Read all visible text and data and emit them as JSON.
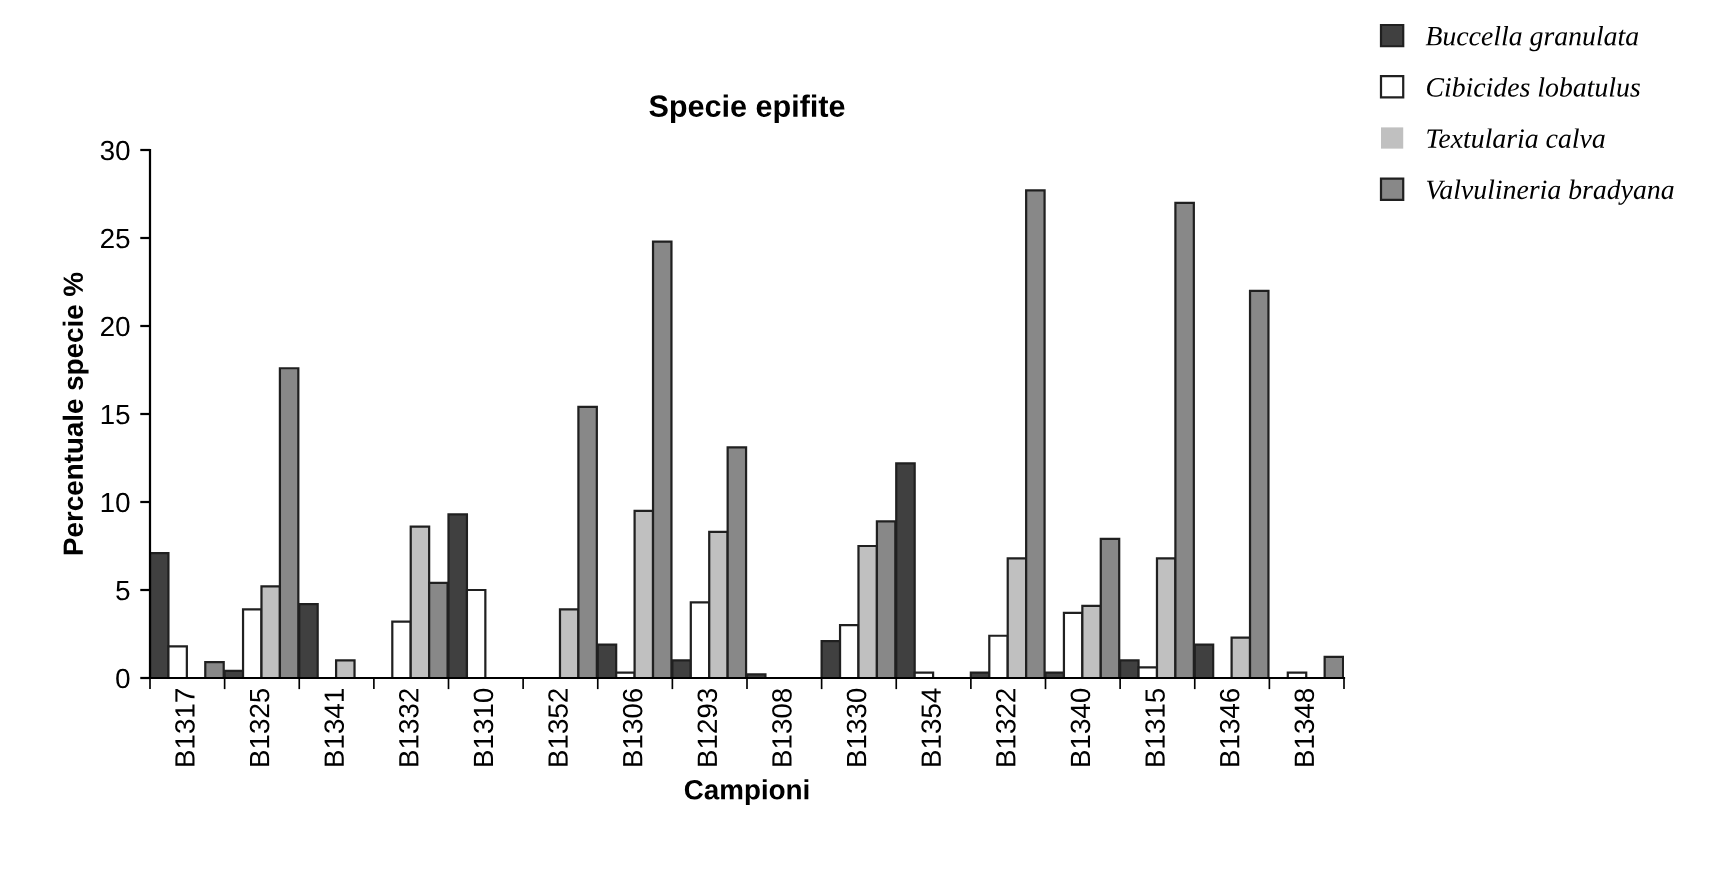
{
  "chart_data": {
    "type": "bar",
    "title": "Specie epifite",
    "xlabel": "Campioni",
    "ylabel": "Percentuale specie %",
    "categories": [
      "B1317",
      "B1325",
      "B1341",
      "B1332",
      "B1310",
      "B1352",
      "B1306",
      "B1293",
      "B1308",
      "B1330",
      "B1354",
      "B1322",
      "B1340",
      "B1315",
      "B1346",
      "B1348"
    ],
    "series": [
      {
        "name": "Buccella granulata",
        "color": "#404040",
        "values": [
          7.1,
          0.4,
          4.2,
          0,
          9.3,
          0,
          1.9,
          1.0,
          0.2,
          2.1,
          12.2,
          0.3,
          0.3,
          1.0,
          1.9,
          0
        ]
      },
      {
        "name": "Cibicides lobatulus",
        "color": "#ffffff",
        "values": [
          1.8,
          3.9,
          0,
          3.2,
          5.0,
          0,
          0.3,
          4.3,
          0,
          3.0,
          0.3,
          2.4,
          3.7,
          0.6,
          0,
          0.3
        ]
      },
      {
        "name": "Textularia calva",
        "color": "#c0c0c0",
        "values": [
          0,
          5.2,
          1.0,
          8.6,
          0,
          3.9,
          9.5,
          8.3,
          0,
          7.5,
          0,
          6.8,
          4.1,
          6.8,
          2.3,
          0
        ]
      },
      {
        "name": "Valvulineria bradyana",
        "color": "#888888",
        "values": [
          0.9,
          17.6,
          0,
          5.4,
          0,
          15.4,
          24.8,
          13.1,
          0,
          8.9,
          0,
          27.7,
          7.9,
          27.0,
          22.0,
          1.2
        ]
      }
    ],
    "ylim": [
      0,
      30
    ],
    "yticks": [
      0,
      5,
      10,
      15,
      20,
      25,
      30
    ],
    "grid": false,
    "legend": "top right"
  }
}
